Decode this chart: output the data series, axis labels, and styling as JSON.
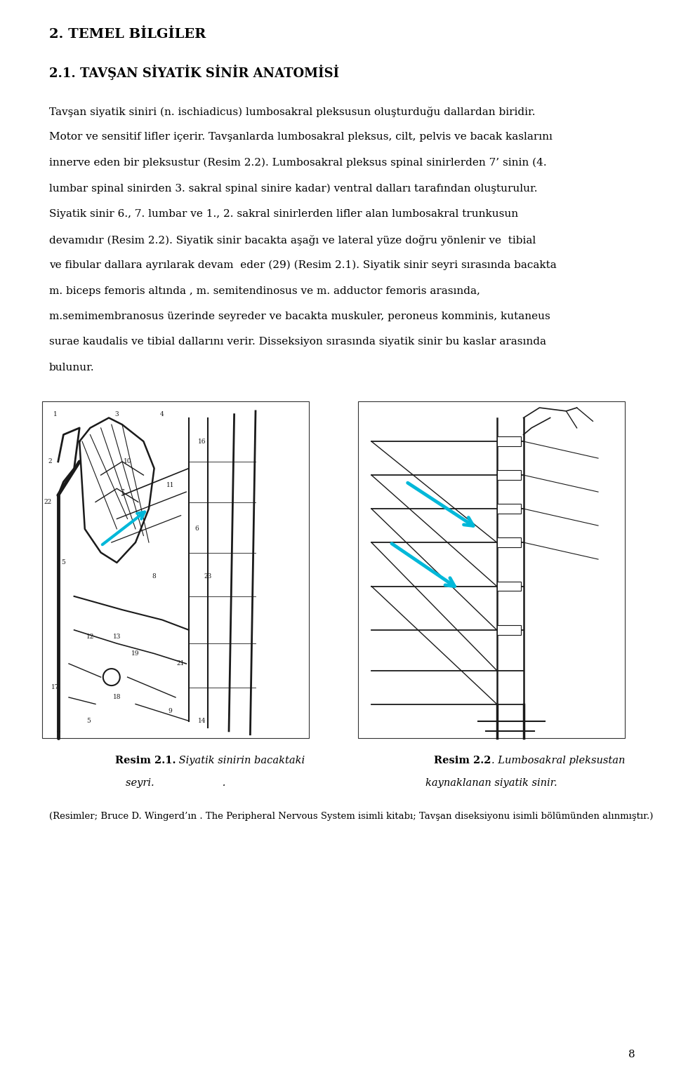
{
  "background_color": "#ffffff",
  "page_width": 9.6,
  "page_height": 15.45,
  "chapter_heading": "2. TEMEL BİLGİLER",
  "section_heading": "2.1. TAVŞAN SİYATİK SİNİR ANATOMİSİ",
  "body_lines": [
    "Tavşan siyatik siniri (n. ischiadicus) lumbosakral pleksusun oluşturduğu dallardan biridir.",
    "Motor ve sensitif lifler içerir. Tavşanlarda lumbosakral pleksus, cilt, pelvis ve bacak kaslarını",
    "innerve eden bir pleksustur (Resim 2.2). Lumbosakral pleksus spinal sinirlerden 7’ sinin (4.",
    "lumbar spinal sinirden 3. sakral spinal sinire kadar) ventral dalları tarafından oluşturulur.",
    "Siyatik sinir 6., 7. lumbar ve 1., 2. sakral sinirlerden lifler alan lumbosakral trunkusun",
    "devamıdır (Resim 2.2). Siyatik sinir bacakta aşağı ve lateral yüze doğru yönlenir ve  tibial",
    "ve fibular dallara ayrılarak devam  eder (29) (Resim 2.1). Siyatik sinir seyri sırasında bacakta",
    "m. biceps femoris altında , m. semitendinosus ve m. adductor femoris arasında,",
    "m.semimembranosus üzerinde seyreder ve bacakta muskuler, peroneus komminis, kutaneus",
    "surae kaudalis ve tibial dallarını verir. Disseksiyon sırasında siyatik sinir bu kaslar arasında",
    "bulunur."
  ],
  "caption1_bold": "Resim 2.1.",
  "caption1_italic": " Siyatik sinirin bacaktaki",
  "caption1_line2": "seyri.                     .",
  "caption2_bold": "Resim 2.2",
  "caption2_italic": ". Lumbosakral pleksustan",
  "caption2_line2": "kaynaklanan siyatik sinir.",
  "footnote": "(Resimler; Bruce D. Wingerd’ın . The Peripheral Nervous System isimli kitabı; Tavşan diseksiyonu isimli bölümünden alınmıştır.)",
  "page_number": "8",
  "heading_fontsize": 14,
  "section_fontsize": 13,
  "body_fontsize": 11,
  "caption_fontsize": 10.5,
  "footnote_fontsize": 9.5
}
